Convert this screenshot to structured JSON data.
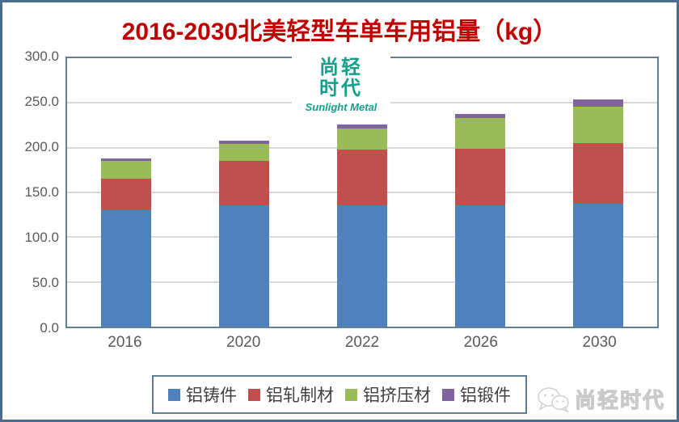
{
  "title": "2016-2030北美轻型车单车用铝量（kg）",
  "colors": {
    "title": "#c00000",
    "frame_border": "#4a6b8b",
    "plot_border": "#5e7f94",
    "gridline": "#d9d9d9",
    "axis_text": "#595959",
    "legend_text": "#404040",
    "watermark_teal": "#12a08c",
    "brand_gray": "#c9c9c9"
  },
  "chart_data": {
    "type": "bar",
    "stacked": true,
    "title": "2016-2030北美轻型车单车用铝量（kg）",
    "categories": [
      "2016",
      "2020",
      "2022",
      "2026",
      "2030"
    ],
    "series": [
      {
        "name": "铝铸件",
        "color": "#4f81bd",
        "values": [
          130,
          136,
          136,
          136,
          137
        ]
      },
      {
        "name": "铝轧制材",
        "color": "#c0504d",
        "values": [
          35,
          49,
          62,
          63,
          68
        ]
      },
      {
        "name": "铝挤压材",
        "color": "#9bbb59",
        "values": [
          20,
          19,
          23,
          34,
          41
        ]
      },
      {
        "name": "铝锻件",
        "color": "#8064a2",
        "values": [
          3,
          4,
          5,
          5,
          8
        ]
      }
    ],
    "totals": [
      188,
      208,
      226,
      238,
      254
    ],
    "ylabel": "",
    "xlabel": "",
    "ylim": [
      0,
      300
    ],
    "ytick_interval": 50,
    "ytick_labels": [
      "300.0",
      "250.0",
      "200.0",
      "150.0",
      "100.0",
      "50.0",
      "0.0"
    ],
    "grid": true,
    "legend_position": "bottom"
  },
  "watermark": {
    "chars": "尚轻\n时代",
    "subtitle": "Sunlight Metal"
  },
  "brand": {
    "text": "尚轻时代",
    "icon": "wechat-icon"
  }
}
